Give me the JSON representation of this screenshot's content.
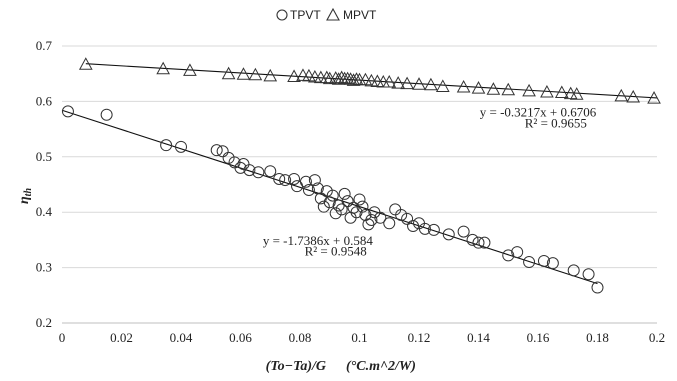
{
  "chart_data": {
    "type": "scatter",
    "xlabel": "(To−Ta)/G",
    "xunit": "(°C.m^2/W)",
    "ylabel": "η",
    "ylabel_sub": "th",
    "xlim": [
      0,
      0.2
    ],
    "ylim": [
      0.2,
      0.7
    ],
    "xticks": [
      0,
      0.02,
      0.04,
      0.06,
      0.08,
      0.1,
      0.12,
      0.14,
      0.16,
      0.18,
      0.2
    ],
    "xtick_labels": [
      "0",
      "0.02",
      "0.04",
      "0.06",
      "0.08",
      "0.1",
      "0.12",
      "0.14",
      "0.16",
      "0.18",
      "0.2"
    ],
    "yticks": [
      0.2,
      0.3,
      0.4,
      0.5,
      0.6,
      0.7
    ],
    "ytick_labels": [
      "0.2",
      "0.3",
      "0.4",
      "0.5",
      "0.6",
      "0.7"
    ],
    "grid": "horizontal",
    "legend_position": "top-center",
    "legend": [
      {
        "name": "TPVT",
        "marker": "circle"
      },
      {
        "name": "MPVT",
        "marker": "triangle"
      }
    ],
    "series": [
      {
        "name": "TPVT",
        "marker": "circle",
        "points": [
          [
            0.002,
            0.582
          ],
          [
            0.015,
            0.576
          ],
          [
            0.035,
            0.521
          ],
          [
            0.04,
            0.518
          ],
          [
            0.052,
            0.512
          ],
          [
            0.054,
            0.51
          ],
          [
            0.056,
            0.498
          ],
          [
            0.058,
            0.49
          ],
          [
            0.06,
            0.48
          ],
          [
            0.061,
            0.487
          ],
          [
            0.063,
            0.476
          ],
          [
            0.066,
            0.472
          ],
          [
            0.07,
            0.474
          ],
          [
            0.073,
            0.46
          ],
          [
            0.075,
            0.458
          ],
          [
            0.078,
            0.46
          ],
          [
            0.079,
            0.447
          ],
          [
            0.082,
            0.455
          ],
          [
            0.083,
            0.44
          ],
          [
            0.085,
            0.458
          ],
          [
            0.086,
            0.443
          ],
          [
            0.087,
            0.425
          ],
          [
            0.088,
            0.41
          ],
          [
            0.089,
            0.438
          ],
          [
            0.09,
            0.418
          ],
          [
            0.091,
            0.43
          ],
          [
            0.092,
            0.398
          ],
          [
            0.093,
            0.412
          ],
          [
            0.094,
            0.405
          ],
          [
            0.095,
            0.433
          ],
          [
            0.096,
            0.42
          ],
          [
            0.097,
            0.39
          ],
          [
            0.098,
            0.408
          ],
          [
            0.099,
            0.4
          ],
          [
            0.1,
            0.423
          ],
          [
            0.101,
            0.41
          ],
          [
            0.102,
            0.395
          ],
          [
            0.103,
            0.378
          ],
          [
            0.104,
            0.386
          ],
          [
            0.105,
            0.4
          ],
          [
            0.107,
            0.39
          ],
          [
            0.11,
            0.38
          ],
          [
            0.112,
            0.405
          ],
          [
            0.114,
            0.395
          ],
          [
            0.116,
            0.388
          ],
          [
            0.118,
            0.375
          ],
          [
            0.12,
            0.38
          ],
          [
            0.122,
            0.37
          ],
          [
            0.125,
            0.368
          ],
          [
            0.13,
            0.36
          ],
          [
            0.135,
            0.365
          ],
          [
            0.138,
            0.35
          ],
          [
            0.14,
            0.345
          ],
          [
            0.142,
            0.345
          ],
          [
            0.15,
            0.322
          ],
          [
            0.153,
            0.328
          ],
          [
            0.157,
            0.31
          ],
          [
            0.162,
            0.312
          ],
          [
            0.165,
            0.308
          ],
          [
            0.172,
            0.295
          ],
          [
            0.177,
            0.288
          ],
          [
            0.18,
            0.264
          ]
        ],
        "trendline": {
          "slope": -1.7386,
          "intercept": 0.584,
          "x_range": [
            0,
            0.18
          ]
        },
        "equation": "y = -1.7386x + 0.584",
        "r2": "R² = 0.9548"
      },
      {
        "name": "MPVT",
        "marker": "triangle",
        "points": [
          [
            0.008,
            0.667
          ],
          [
            0.034,
            0.659
          ],
          [
            0.043,
            0.656
          ],
          [
            0.056,
            0.65
          ],
          [
            0.061,
            0.649
          ],
          [
            0.065,
            0.648
          ],
          [
            0.07,
            0.646
          ],
          [
            0.078,
            0.645
          ],
          [
            0.081,
            0.647
          ],
          [
            0.083,
            0.646
          ],
          [
            0.085,
            0.644
          ],
          [
            0.087,
            0.643
          ],
          [
            0.089,
            0.643
          ],
          [
            0.09,
            0.641
          ],
          [
            0.092,
            0.642
          ],
          [
            0.093,
            0.64
          ],
          [
            0.094,
            0.643
          ],
          [
            0.095,
            0.641
          ],
          [
            0.096,
            0.641
          ],
          [
            0.097,
            0.64
          ],
          [
            0.098,
            0.638
          ],
          [
            0.099,
            0.64
          ],
          [
            0.1,
            0.639
          ],
          [
            0.102,
            0.639
          ],
          [
            0.104,
            0.637
          ],
          [
            0.106,
            0.636
          ],
          [
            0.108,
            0.635
          ],
          [
            0.11,
            0.635
          ],
          [
            0.113,
            0.633
          ],
          [
            0.116,
            0.632
          ],
          [
            0.12,
            0.631
          ],
          [
            0.124,
            0.63
          ],
          [
            0.128,
            0.627
          ],
          [
            0.135,
            0.626
          ],
          [
            0.14,
            0.624
          ],
          [
            0.145,
            0.622
          ],
          [
            0.15,
            0.621
          ],
          [
            0.157,
            0.619
          ],
          [
            0.163,
            0.617
          ],
          [
            0.168,
            0.616
          ],
          [
            0.171,
            0.614
          ],
          [
            0.173,
            0.613
          ],
          [
            0.188,
            0.61
          ],
          [
            0.192,
            0.608
          ],
          [
            0.199,
            0.606
          ]
        ],
        "trendline": {
          "slope": -0.3217,
          "intercept": 0.6706,
          "x_range": [
            0.008,
            0.2
          ]
        },
        "equation": "y = -0.3217x + 0.6706",
        "r2": "R² = 0.9655"
      }
    ],
    "annotations": [
      {
        "series": "MPVT",
        "text": "y = -0.3217x + 0.6706",
        "x": 0.16,
        "y": 0.573
      },
      {
        "series": "MPVT",
        "text": "R² = 0.9655",
        "x": 0.166,
        "y": 0.553
      },
      {
        "series": "TPVT",
        "text": "y = -1.7386x + 0.584",
        "x": 0.086,
        "y": 0.341
      },
      {
        "series": "TPVT",
        "text": "R² = 0.9548",
        "x": 0.092,
        "y": 0.322
      }
    ]
  }
}
